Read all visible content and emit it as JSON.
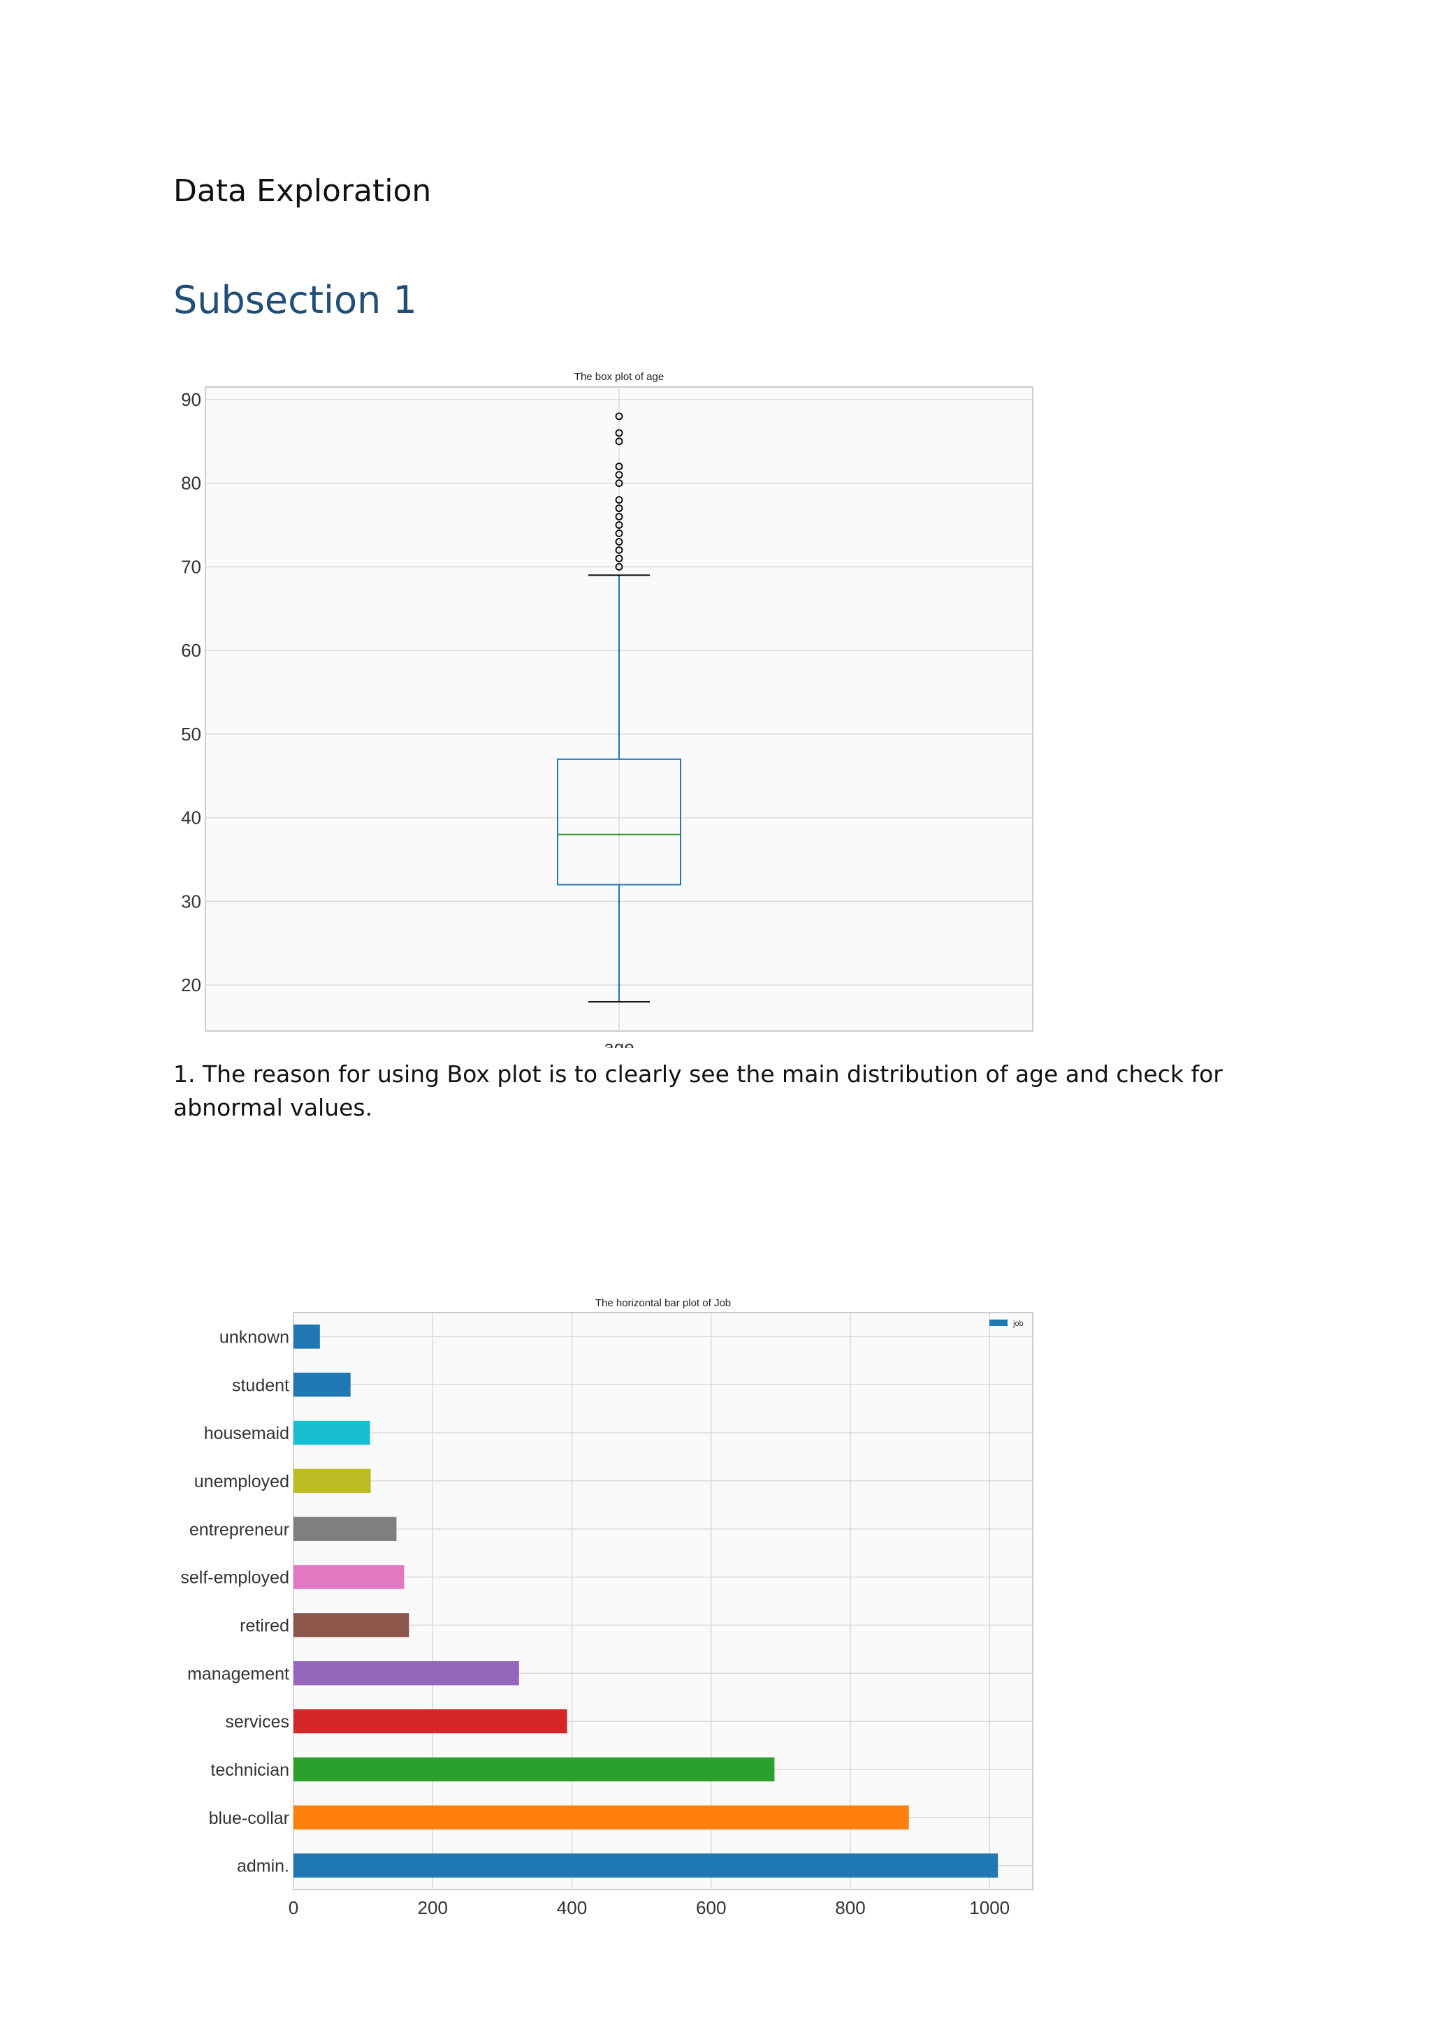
{
  "document": {
    "title": "Data Exploration",
    "section_heading": "Subsection 1",
    "paragraph": "1. The reason for using Box plot is to clearly see the main distribution of age and check for abnormal values."
  },
  "chart_data": [
    {
      "type": "box",
      "title": "The box plot of age",
      "categories": [
        "age"
      ],
      "box": {
        "whisker_low": 18,
        "q1": 32,
        "median": 38,
        "q3": 47,
        "whisker_high": 69
      },
      "outliers": [
        70,
        71,
        72,
        73,
        74,
        75,
        76,
        77,
        78,
        80,
        81,
        82,
        85,
        86,
        88
      ],
      "ylim": [
        14.5,
        91.5
      ],
      "yticks": [
        20,
        30,
        40,
        50,
        60,
        70,
        80,
        90
      ],
      "grid": true,
      "colors": {
        "box": "#1f77b4",
        "median": "#2ca02c",
        "whisker_cap": "#000000"
      }
    },
    {
      "type": "bar",
      "orientation": "horizontal",
      "title": "The horizontal bar plot of Job",
      "categories": [
        "admin.",
        "blue-collar",
        "technician",
        "services",
        "management",
        "retired",
        "self-employed",
        "entrepreneur",
        "unemployed",
        "housemaid",
        "student",
        "unknown"
      ],
      "series": [
        {
          "name": "job",
          "values": [
            1012,
            884,
            691,
            393,
            324,
            166,
            159,
            148,
            111,
            110,
            82,
            38
          ]
        }
      ],
      "colors": [
        "#1f77b4",
        "#ff7f0e",
        "#2ca02c",
        "#d62728",
        "#9467bd",
        "#8c564b",
        "#e377c2",
        "#7f7f7f",
        "#bcbd22",
        "#17becf",
        "#1f77b4",
        "#1f77b4"
      ],
      "xlim": [
        0,
        1062
      ],
      "xticks": [
        0,
        200,
        400,
        600,
        800,
        1000
      ],
      "grid": true,
      "legend": "top-right"
    }
  ]
}
